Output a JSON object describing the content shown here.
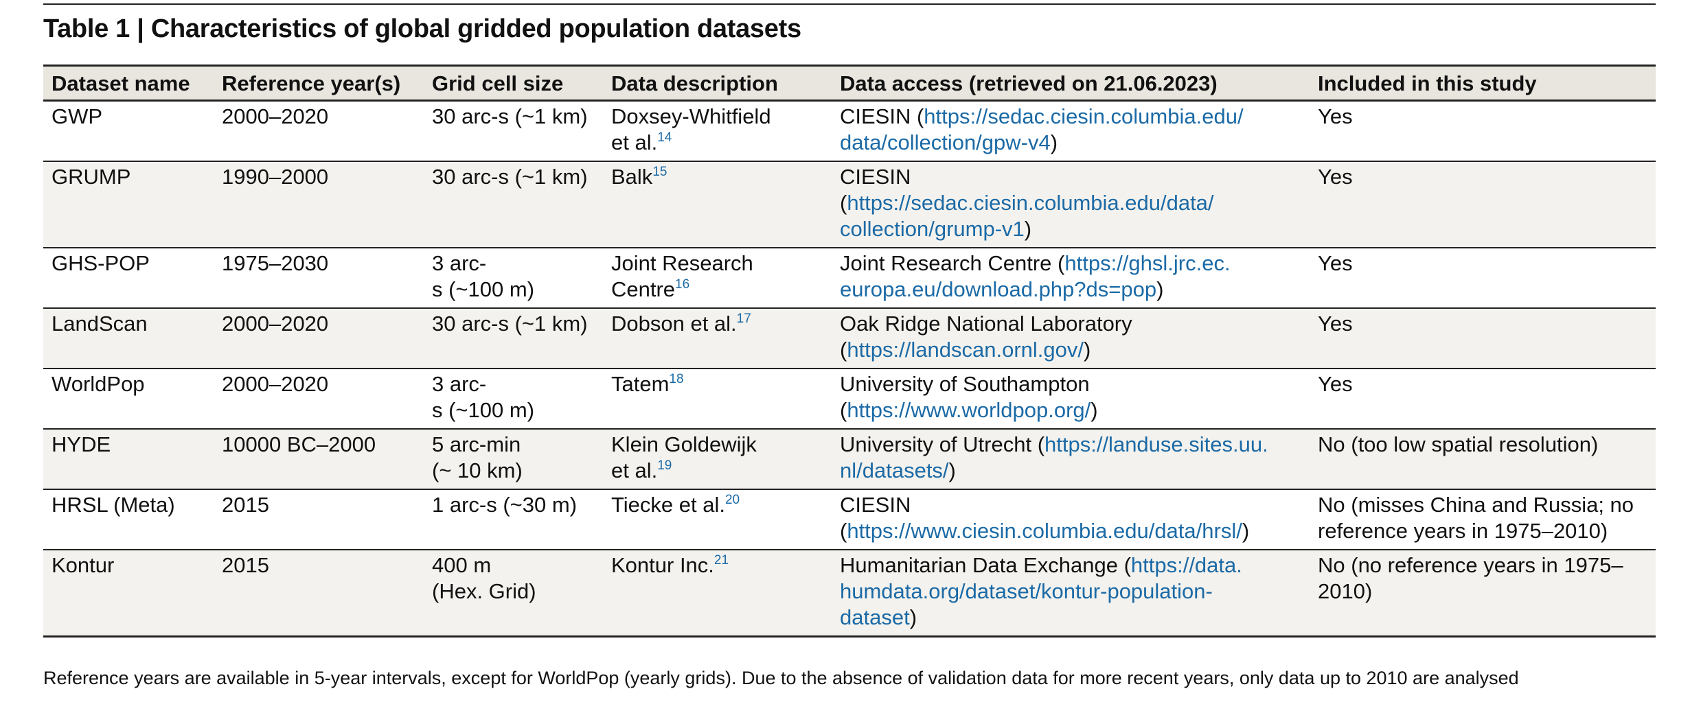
{
  "title": "Table 1 | Characteristics of global gridded population datasets",
  "columns": [
    "Dataset name",
    "Reference year(s)",
    "Grid cell size",
    "Data description",
    "Data access (retrieved on 21.06.2023)",
    "Included in this study"
  ],
  "rows": [
    {
      "name": "GWP",
      "years": "2000–2020",
      "grid": [
        "30 arc-s (~1 km)"
      ],
      "desc": [
        "Doxsey-Whitfield",
        "et al."
      ],
      "ref": "14",
      "access": {
        "pre": [
          "CIESIN ("
        ],
        "url": [
          "https://sedac.ciesin.columbia.edu/",
          "data/collection/gpw-v4"
        ],
        "post": ")"
      },
      "included": "Yes"
    },
    {
      "name": "GRUMP",
      "years": "1990–2000",
      "grid": [
        "30 arc-s (~1 km)"
      ],
      "desc": [
        "Balk"
      ],
      "ref": "15",
      "access": {
        "pre": [
          "CIESIN",
          "("
        ],
        "url": [
          "https://sedac.ciesin.columbia.edu/data/",
          "collection/grump-v1"
        ],
        "post": ")"
      },
      "included": "Yes"
    },
    {
      "name": "GHS-POP",
      "years": "1975–2030",
      "grid": [
        "3 arc-",
        "s (~100 m)"
      ],
      "desc": [
        "Joint Research",
        "Centre"
      ],
      "ref": "16",
      "access": {
        "pre": [
          "Joint Research Centre ("
        ],
        "url": [
          "https://ghsl.jrc.ec.",
          "europa.eu/download.php?ds=pop"
        ],
        "post": ")"
      },
      "included": "Yes"
    },
    {
      "name": "LandScan",
      "years": "2000–2020",
      "grid": [
        "30 arc-s (~1 km)"
      ],
      "desc": [
        "Dobson et al."
      ],
      "ref": "17",
      "access": {
        "pre": [
          "Oak Ridge National Laboratory",
          "("
        ],
        "url": [
          "https://landscan.ornl.gov/"
        ],
        "post": ")"
      },
      "included": "Yes"
    },
    {
      "name": "WorldPop",
      "years": "2000–2020",
      "grid": [
        "3 arc-",
        "s (~100 m)"
      ],
      "desc": [
        "Tatem"
      ],
      "ref": "18",
      "access": {
        "pre": [
          "University of Southampton",
          "("
        ],
        "url": [
          "https://www.worldpop.org/"
        ],
        "post": ")"
      },
      "included": "Yes"
    },
    {
      "name": "HYDE",
      "years": "10000 BC–2000",
      "grid": [
        "5 arc-min",
        "(~ 10 km)"
      ],
      "desc": [
        "Klein Goldewijk",
        "et al."
      ],
      "ref": "19",
      "access": {
        "pre": [
          "University of Utrecht ("
        ],
        "url": [
          "https://landuse.sites.uu.",
          "nl/datasets/"
        ],
        "post": ")"
      },
      "included": "No (too low spatial resolution)"
    },
    {
      "name": "HRSL (Meta)",
      "years": "2015",
      "grid": [
        "1 arc-s (~30 m)"
      ],
      "desc": [
        "Tiecke et al."
      ],
      "ref": "20",
      "access": {
        "pre": [
          "CIESIN",
          "("
        ],
        "url": [
          "https://www.ciesin.columbia.edu/data/hrsl/"
        ],
        "post": ")"
      },
      "included": "No (misses China and Russia; no reference years in 1975–2010)"
    },
    {
      "name": "Kontur",
      "years": "2015",
      "grid": [
        "400 m",
        "(Hex. Grid)"
      ],
      "desc": [
        "Kontur Inc."
      ],
      "ref": "21",
      "access": {
        "pre": [
          "Humanitarian Data Exchange ("
        ],
        "url": [
          "https://data.",
          "humdata.org/dataset/kontur-population-",
          "dataset"
        ],
        "post": ")"
      },
      "included": "No (no reference years in 1975–2010)"
    }
  ],
  "footnote": "Reference years are available in 5-year intervals, except for WorldPop (yearly grids). Due to the absence of validation data for more recent years, only data up to 2010 are analysed"
}
